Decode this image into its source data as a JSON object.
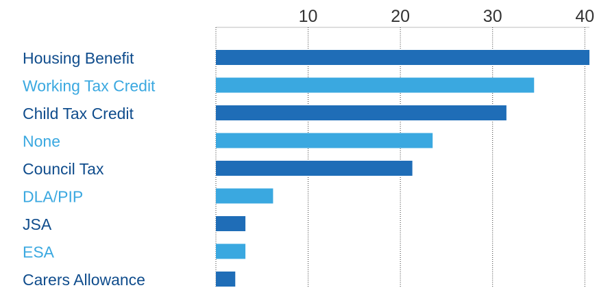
{
  "chart_data": {
    "type": "bar",
    "orientation": "horizontal",
    "categories": [
      "Housing Benefit",
      "Working Tax Credit",
      "Child Tax Credit",
      "None",
      "Council Tax",
      "DLA/PIP",
      "JSA",
      "ESA",
      "Carers Allowance"
    ],
    "values": [
      40.5,
      34.5,
      31.5,
      23.5,
      21.3,
      6.2,
      3.2,
      3.2,
      2.1
    ],
    "xlim": [
      0,
      40.5
    ],
    "xticks": [
      10,
      20,
      30,
      40
    ],
    "tick_labels": [
      "10",
      "20",
      "30",
      "40"
    ],
    "x_axis_position": "top",
    "grid": "vertical dotted",
    "title": "",
    "xlabel": "",
    "ylabel": "",
    "colors": {
      "dark": "#1f6db7",
      "light": "#3aa8e0",
      "label_dark": "#0f4c8c",
      "label_light": "#3aa8e0",
      "tick_text": "#333333",
      "grid": "#333333"
    }
  }
}
